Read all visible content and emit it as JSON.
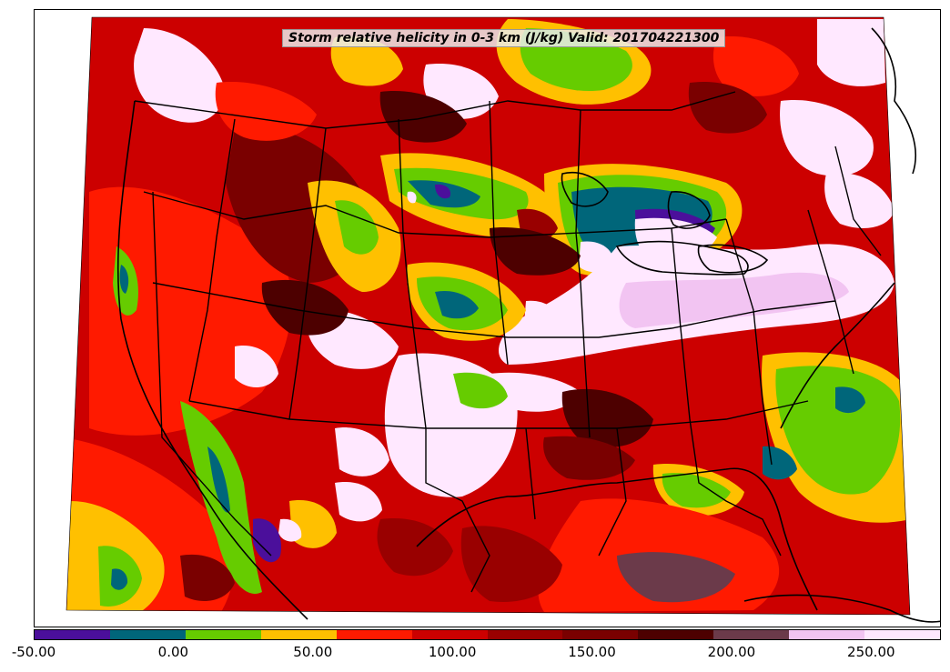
{
  "title": "Storm relative helicity in 0-3 km (J/kg) Valid: 201704221300",
  "colorbar": {
    "colors": [
      "#4b0f9b",
      "#00667a",
      "#66cc00",
      "#ffc000",
      "#ff1a00",
      "#cc0000",
      "#990000",
      "#7a0000",
      "#4d0000",
      "#6b3a4a",
      "#f2c4f2",
      "#ffe8ff"
    ],
    "tick_labels": [
      "-50.00",
      "0.00",
      "50.00",
      "100.00",
      "150.00",
      "200.00",
      "250.00"
    ],
    "tick_values": [
      -50,
      0,
      50,
      100,
      150,
      200,
      250
    ],
    "range": [
      -50,
      275
    ],
    "bin_width": 25
  },
  "map": {
    "region": "Continental United States",
    "projection": "Lambert conformal",
    "borders": [
      "coastlines",
      "country-borders",
      "state-borders"
    ]
  }
}
